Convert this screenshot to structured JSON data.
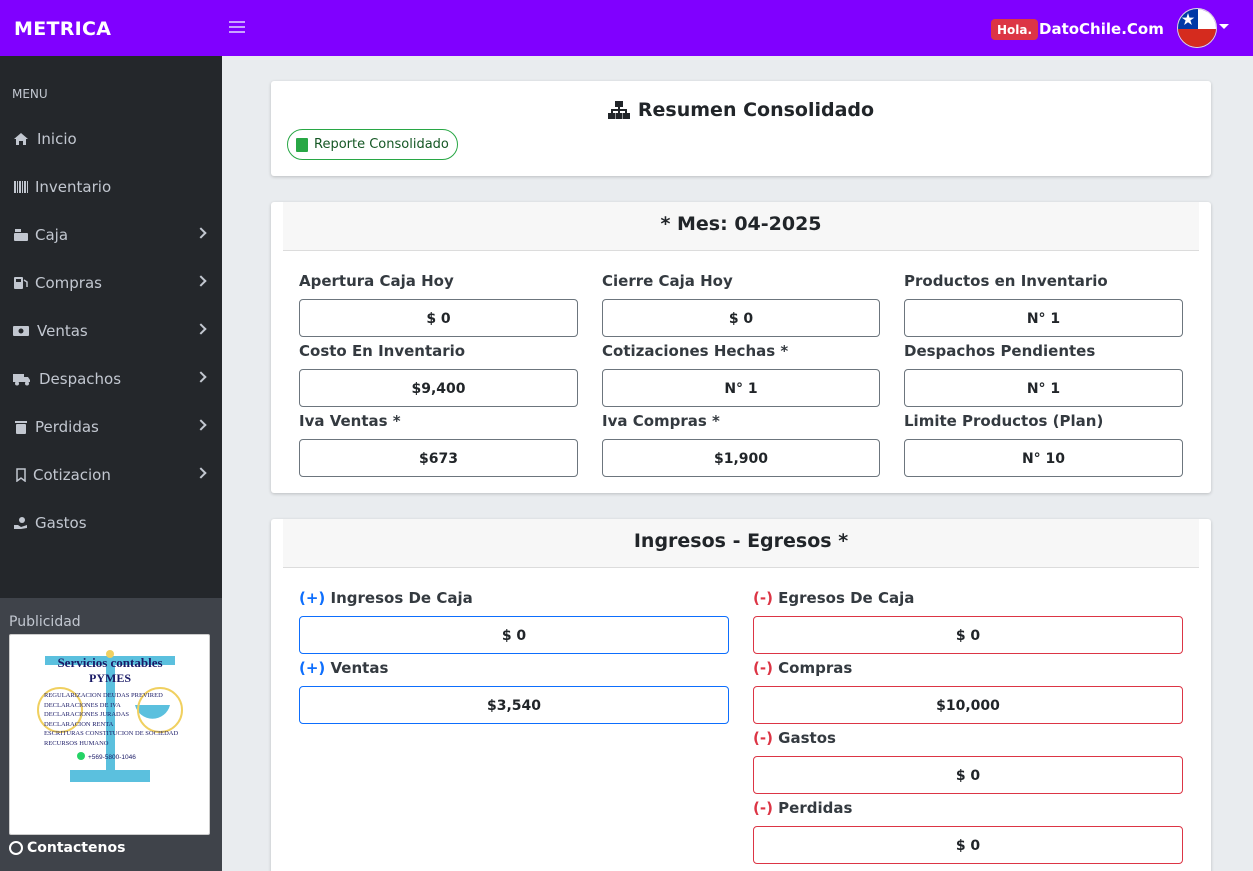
{
  "header": {
    "brand": "METRICA",
    "greeting_badge": "Hola.",
    "site_name": "DatoChile.Com"
  },
  "sidebar": {
    "menu_heading": "MENU",
    "items": [
      {
        "label": "Inicio",
        "icon": "home-icon",
        "has_submenu": false
      },
      {
        "label": "Inventario",
        "icon": "barcode-icon",
        "has_submenu": false
      },
      {
        "label": "Caja",
        "icon": "cash-register-icon",
        "has_submenu": true
      },
      {
        "label": "Compras",
        "icon": "gas-pump-icon",
        "has_submenu": true
      },
      {
        "label": "Ventas",
        "icon": "money-bill-icon",
        "has_submenu": true
      },
      {
        "label": "Despachos",
        "icon": "truck-icon",
        "has_submenu": true
      },
      {
        "label": "Perdidas",
        "icon": "trash-icon",
        "has_submenu": true
      },
      {
        "label": "Cotizacion",
        "icon": "bookmark-icon",
        "has_submenu": true
      },
      {
        "label": "Gastos",
        "icon": "hand-holding-usd-icon",
        "has_submenu": false
      }
    ],
    "advert_title": "Publicidad",
    "advert": {
      "heading": "Servicios contables",
      "subheading": "PYMES",
      "services": [
        "REGULARIZACION DEUDAS PREVIRED",
        "DECLARACIONES DE IVA",
        "DECLARACIONES JURADAS",
        "DECLARACION RENTA",
        "ESCRITURAS CONSTITUCION DE SOCIEDAD",
        "RECURSOS HUMANO"
      ],
      "phone": "+569-5800-1046"
    },
    "contact_label": "Contactenos"
  },
  "summary": {
    "title": "Resumen Consolidado",
    "report_button": "Reporte Consolidado"
  },
  "month_card": {
    "title": "* Mes: 04-2025",
    "fields": [
      {
        "label": "Apertura Caja Hoy",
        "value": "$ 0"
      },
      {
        "label": "Cierre Caja Hoy",
        "value": "$ 0"
      },
      {
        "label": "Productos en Inventario",
        "value": "N° 1"
      },
      {
        "label": "Costo En Inventario",
        "value": "$9,400"
      },
      {
        "label": "Cotizaciones Hechas *",
        "value": "N° 1"
      },
      {
        "label": "Despachos Pendientes",
        "value": "N° 1"
      },
      {
        "label": "Iva Ventas *",
        "value": "$673"
      },
      {
        "label": "Iva Compras *",
        "value": "$1,900"
      },
      {
        "label": "Limite Productos (Plan)",
        "value": "N° 10"
      }
    ]
  },
  "flow_card": {
    "title": "Ingresos - Egresos *",
    "plus_sign": "(+)",
    "minus_sign": "(-)",
    "ingresos": [
      {
        "label": "Ingresos De Caja",
        "value": "$ 0"
      },
      {
        "label": "Ventas",
        "value": "$3,540"
      }
    ],
    "egresos": [
      {
        "label": "Egresos De Caja",
        "value": "$ 0"
      },
      {
        "label": "Compras",
        "value": "$10,000"
      },
      {
        "label": "Gastos",
        "value": "$ 0"
      },
      {
        "label": "Perdidas",
        "value": "$ 0"
      }
    ]
  },
  "colors": {
    "topbar": "#8000ff",
    "sidebar": "#24272b",
    "positive": "#0d6efd",
    "negative": "#dc3545",
    "report_button": "#28a745"
  }
}
